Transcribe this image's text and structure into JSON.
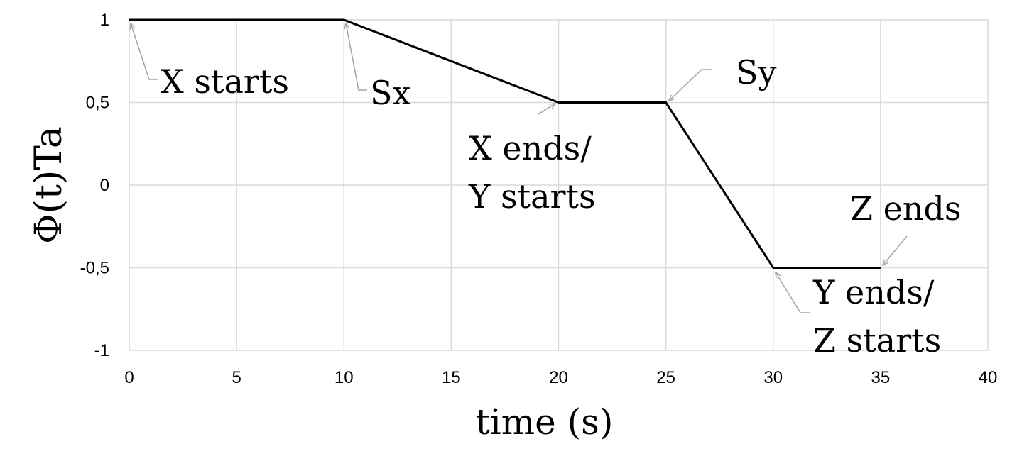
{
  "chart_data": {
    "type": "line",
    "xlabel": "time (s)",
    "ylabel": "Φ(t)Ta",
    "xlim": [
      0,
      40
    ],
    "ylim": [
      -1,
      1
    ],
    "x_ticks": [
      0,
      5,
      10,
      15,
      20,
      25,
      30,
      35,
      40
    ],
    "y_ticks": [
      1,
      0.5,
      0,
      -0.5,
      -1
    ],
    "x_tick_labels": [
      "0",
      "5",
      "10",
      "15",
      "20",
      "25",
      "30",
      "35",
      "40"
    ],
    "y_tick_labels": [
      "1",
      "0,5",
      "0",
      "-0,5",
      "-1"
    ],
    "grid": true,
    "legend": "none",
    "series": [
      {
        "x": [
          0,
          10,
          20,
          25,
          30,
          35
        ],
        "y": [
          1,
          1,
          0.5,
          0.5,
          -0.5,
          -0.5
        ]
      }
    ],
    "annotations": [
      {
        "lines": [
          "X starts"
        ],
        "x": 0,
        "y": 1
      },
      {
        "lines": [
          "Sx"
        ],
        "x": 10,
        "y": 1
      },
      {
        "lines": [
          "X ends/",
          "Y starts"
        ],
        "x": 20,
        "y": 0.5
      },
      {
        "lines": [
          "Sy"
        ],
        "x": 25,
        "y": 0.5
      },
      {
        "lines": [
          "Z ends"
        ],
        "x": 35,
        "y": -0.5
      },
      {
        "lines": [
          "Y ends/",
          "Z starts"
        ],
        "x": 30,
        "y": -0.5
      }
    ],
    "colors": {
      "line": "#000000",
      "grid": "#d9d9d9",
      "arrow": "#a6a6a6"
    }
  }
}
